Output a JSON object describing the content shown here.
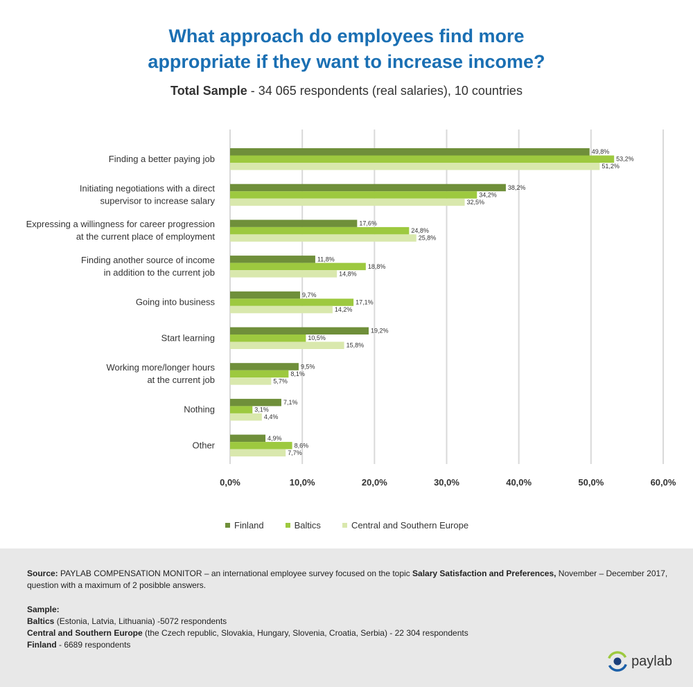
{
  "title_line1": "What approach do employees find more",
  "title_line2": "appropriate if they want to increase income?",
  "subtitle_bold": "Total Sample",
  "subtitle_rest": " - 34 065 respondents (real salaries), 10 countries",
  "chart_data": {
    "type": "bar",
    "orientation": "horizontal",
    "categories": [
      [
        "Finding a better paying job"
      ],
      [
        "Initiating negotiations with a direct",
        "supervisor to increase salary"
      ],
      [
        "Expressing a willingness for career progression",
        "at the current place of employment"
      ],
      [
        "Finding another source of income",
        "in addition to the current job"
      ],
      [
        "Going into business"
      ],
      [
        "Start learning"
      ],
      [
        "Working more/longer hours",
        "at the current job"
      ],
      [
        "Nothing"
      ],
      [
        "Other"
      ]
    ],
    "series": [
      {
        "name": "Finland",
        "color": "#6f8f3a",
        "values": [
          49.8,
          38.2,
          17.6,
          11.8,
          9.7,
          19.2,
          9.5,
          7.1,
          4.9
        ],
        "labels": [
          "49,8%",
          "38,2%",
          "17,6%",
          "11,8%",
          "9,7%",
          "19,2%",
          "9,5%",
          "7,1%",
          "4,9%"
        ]
      },
      {
        "name": "Baltics",
        "color": "#9dc93f",
        "values": [
          53.2,
          34.2,
          24.8,
          18.8,
          17.1,
          10.5,
          8.1,
          3.1,
          8.6
        ],
        "labels": [
          "53,2%",
          "34,2%",
          "24,8%",
          "18,8%",
          "17,1%",
          "10,5%",
          "8,1%",
          "3,1%",
          "8,6%"
        ]
      },
      {
        "name": "Central and Southern Europe",
        "color": "#d9e8ad",
        "values": [
          51.2,
          32.5,
          25.8,
          14.8,
          14.2,
          15.8,
          5.7,
          4.4,
          7.7
        ],
        "labels": [
          "51,2%",
          "32,5%",
          "25,8%",
          "14,8%",
          "14,2%",
          "15,8%",
          "5,7%",
          "4,4%",
          "7,7%"
        ]
      }
    ],
    "xlim": [
      0,
      60
    ],
    "x_ticks": [
      0,
      10,
      20,
      30,
      40,
      50,
      60
    ],
    "x_tick_labels": [
      "0,0%",
      "10,0%",
      "20,0%",
      "30,0%",
      "40,0%",
      "50,0%",
      "60,0%"
    ],
    "grid": true,
    "legend": "bottom"
  },
  "footer": {
    "source_label": "Source:",
    "source_text1": " PAYLAB COMPENSATION MONITOR – an international employee survey focused on the topic ",
    "source_bold": "Salary Satisfaction and Preferences,",
    "source_text2": " November – December 2017, question with a maximum of 2 posibble answers.",
    "sample_label": "Sample:",
    "baltics_label": "Baltics",
    "baltics_text": " (Estonia, Latvia, Lithuania) -5072 respondents",
    "cse_label": "Central and Southern Europe",
    "cse_text": " (the Czech republic, Slovakia, Hungary, Slovenia, Croatia, Serbia) - 22 304 respondents",
    "finland_label": "Finland",
    "finland_text": " - 6689 respondents"
  },
  "logo_text": "paylab"
}
